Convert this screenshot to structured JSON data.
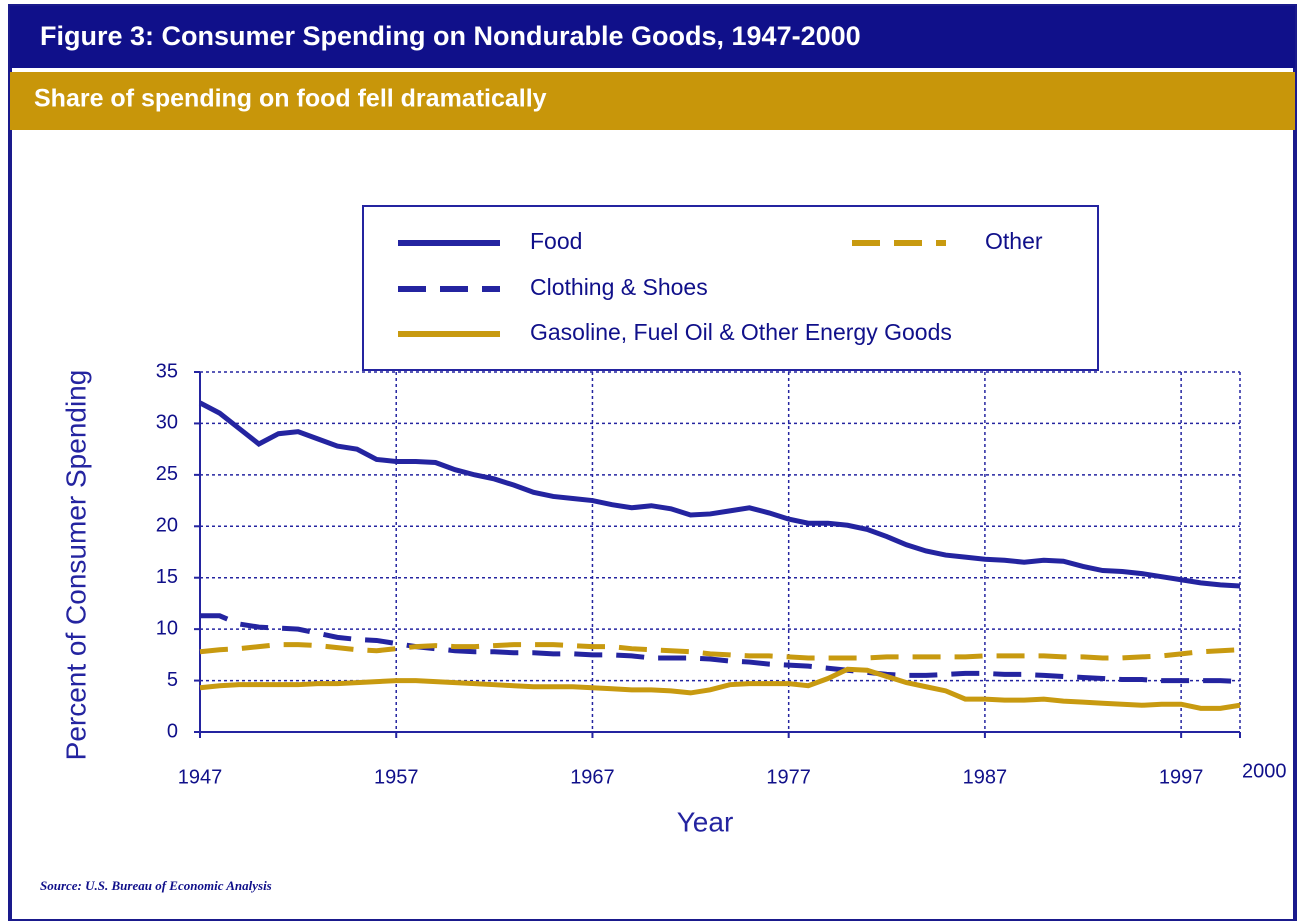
{
  "chart_data": {
    "type": "line",
    "title": "Figure 3: Consumer Spending on Nondurable Goods, 1947-2000",
    "subtitle": "Share of spending on food fell dramatically",
    "x_label": "Year",
    "y_label": "Percent of Consumer Spending",
    "source": "Source: U.S. Bureau of Economic Analysis",
    "x": [
      1947,
      1948,
      1949,
      1950,
      1951,
      1952,
      1953,
      1954,
      1955,
      1956,
      1957,
      1958,
      1959,
      1960,
      1961,
      1962,
      1963,
      1964,
      1965,
      1966,
      1967,
      1968,
      1969,
      1970,
      1971,
      1972,
      1973,
      1974,
      1975,
      1976,
      1977,
      1978,
      1979,
      1980,
      1981,
      1982,
      1983,
      1984,
      1985,
      1986,
      1987,
      1988,
      1989,
      1990,
      1991,
      1992,
      1993,
      1994,
      1995,
      1996,
      1997,
      1998,
      1999,
      2000
    ],
    "series": [
      {
        "name": "Food",
        "color": "#2424a0",
        "style": "solid",
        "values": [
          32,
          31,
          29.5,
          28,
          29,
          29.2,
          28.5,
          27.8,
          27.5,
          26.5,
          26.3,
          26.3,
          26.2,
          25.5,
          25,
          24.6,
          24,
          23.3,
          22.9,
          22.7,
          22.5,
          22.1,
          21.8,
          22,
          21.7,
          21.1,
          21.2,
          21.5,
          21.8,
          21.3,
          20.7,
          20.3,
          20.3,
          20.1,
          19.7,
          19,
          18.2,
          17.6,
          17.2,
          17,
          16.8,
          16.7,
          16.5,
          16.7,
          16.6,
          16.1,
          15.7,
          15.6,
          15.4,
          15.1,
          14.8,
          14.5,
          14.3,
          14.2
        ]
      },
      {
        "name": "Clothing & Shoes",
        "color": "#2424a0",
        "style": "dashed",
        "values": [
          11.3,
          11.3,
          10.5,
          10.2,
          10.1,
          10,
          9.6,
          9.2,
          9,
          8.9,
          8.6,
          8.3,
          8.1,
          7.9,
          7.8,
          7.8,
          7.7,
          7.7,
          7.6,
          7.6,
          7.5,
          7.5,
          7.4,
          7.2,
          7.2,
          7.2,
          7.1,
          6.9,
          6.8,
          6.6,
          6.5,
          6.4,
          6.2,
          6,
          5.8,
          5.6,
          5.5,
          5.5,
          5.6,
          5.7,
          5.7,
          5.6,
          5.6,
          5.5,
          5.4,
          5.3,
          5.2,
          5.1,
          5.1,
          5,
          5,
          5,
          5,
          4.9
        ]
      },
      {
        "name": "Gasoline, Fuel Oil & Other Energy Goods",
        "color": "#c89a10",
        "style": "solid",
        "values": [
          4.3,
          4.5,
          4.6,
          4.6,
          4.6,
          4.6,
          4.7,
          4.7,
          4.8,
          4.9,
          5,
          5,
          4.9,
          4.8,
          4.7,
          4.6,
          4.5,
          4.4,
          4.4,
          4.4,
          4.3,
          4.2,
          4.1,
          4.1,
          4,
          3.8,
          4.1,
          4.6,
          4.7,
          4.7,
          4.7,
          4.5,
          5.2,
          6.1,
          6,
          5.4,
          4.8,
          4.4,
          4,
          3.2,
          3.2,
          3.1,
          3.1,
          3.2,
          3,
          2.9,
          2.8,
          2.7,
          2.6,
          2.7,
          2.7,
          2.3,
          2.3,
          2.6
        ]
      },
      {
        "name": "Other",
        "color": "#c89a10",
        "style": "dashed",
        "values": [
          7.8,
          8,
          8.1,
          8.3,
          8.5,
          8.5,
          8.4,
          8.2,
          8,
          7.9,
          8.1,
          8.3,
          8.4,
          8.3,
          8.3,
          8.4,
          8.5,
          8.5,
          8.5,
          8.4,
          8.3,
          8.3,
          8.1,
          8,
          7.9,
          7.8,
          7.6,
          7.5,
          7.4,
          7.4,
          7.3,
          7.2,
          7.2,
          7.2,
          7.2,
          7.3,
          7.3,
          7.3,
          7.3,
          7.3,
          7.4,
          7.4,
          7.4,
          7.4,
          7.3,
          7.3,
          7.2,
          7.2,
          7.3,
          7.4,
          7.6,
          7.8,
          7.9,
          8
        ]
      }
    ],
    "xlim": [
      1947,
      2000
    ],
    "xticks": [
      1947,
      1957,
      1967,
      1977,
      1987,
      1997,
      2000
    ],
    "ylim": [
      0,
      35
    ],
    "yticks": [
      0,
      5,
      10,
      15,
      20,
      25,
      30,
      35
    ],
    "grid": true
  }
}
